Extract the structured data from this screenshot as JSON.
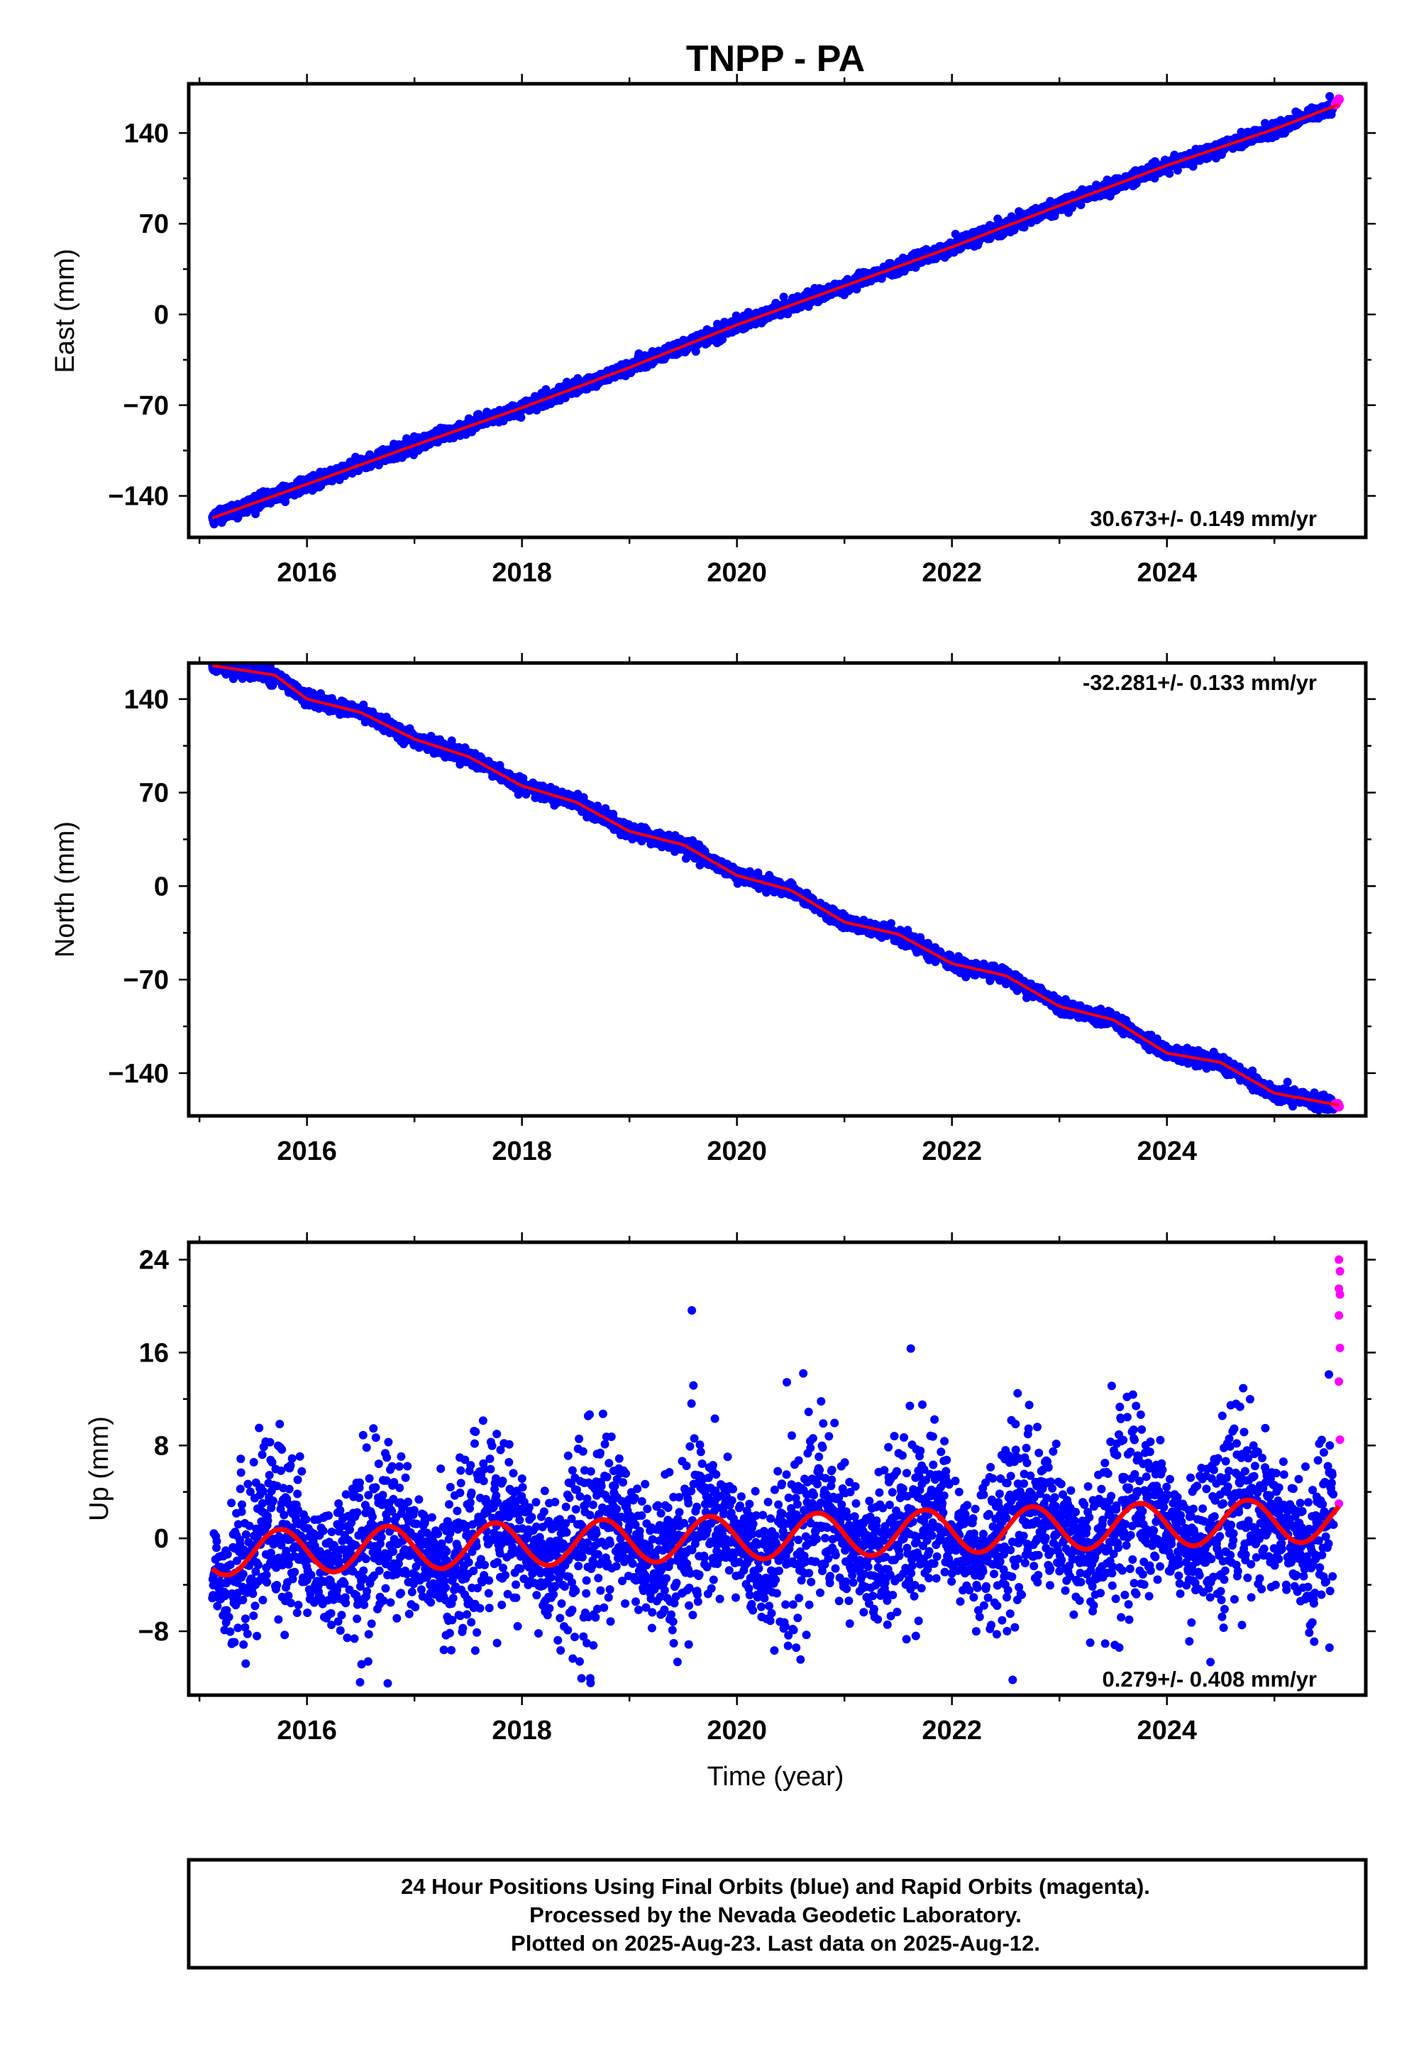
{
  "title": "TNPP - PA",
  "colors": {
    "final": "#0000ff",
    "rapid": "#ff00ff",
    "model": "#ff0000",
    "frame": "#000000"
  },
  "footer": {
    "line1": "24 Hour Positions Using Final Orbits (blue) and Rapid Orbits (magenta).",
    "line2": "Processed by the Nevada Geodetic Laboratory.",
    "line3": "Plotted on 2025-Aug-23. Last data on 2025-Aug-12."
  },
  "chart_data": [
    {
      "type": "scatter",
      "ylabel": "East (mm)",
      "xlabel": "",
      "xlim": [
        2014.9,
        2025.85
      ],
      "ylim": [
        -172,
        178
      ],
      "yticks": [
        -140,
        -70,
        0,
        70,
        140
      ],
      "xticks": [
        2016,
        2018,
        2020,
        2022,
        2024
      ],
      "rate_text": "30.673+/- 0.149 mm/yr",
      "rate_position": "bottom-right",
      "series": [
        {
          "role": "final",
          "x_range": [
            2015.12,
            2025.55
          ],
          "trend": [
            [
              2015.12,
              -157
            ],
            [
              2016.0,
              -131
            ],
            [
              2017.0,
              -101
            ],
            [
              2018.0,
              -72
            ],
            [
              2019.0,
              -41
            ],
            [
              2020.0,
              -8
            ],
            [
              2021.0,
              22
            ],
            [
              2022.0,
              52
            ],
            [
              2023.0,
              84
            ],
            [
              2024.0,
              115
            ],
            [
              2025.0,
              143
            ],
            [
              2025.55,
              160
            ]
          ],
          "noise_mm": 2.5
        },
        {
          "role": "rapid",
          "points": [
            [
              2025.57,
              162
            ],
            [
              2025.58,
              164
            ],
            [
              2025.59,
              165
            ],
            [
              2025.6,
              166
            ]
          ]
        },
        {
          "role": "model",
          "trend": [
            [
              2015.12,
              -157
            ],
            [
              2016.0,
              -131
            ],
            [
              2017.0,
              -101
            ],
            [
              2018.0,
              -72
            ],
            [
              2019.0,
              -41
            ],
            [
              2020.0,
              -8
            ],
            [
              2021.0,
              22
            ],
            [
              2022.0,
              52
            ],
            [
              2023.0,
              84
            ],
            [
              2024.0,
              115
            ],
            [
              2025.0,
              143
            ],
            [
              2025.6,
              162
            ]
          ]
        }
      ]
    },
    {
      "type": "scatter",
      "ylabel": "North (mm)",
      "xlabel": "",
      "xlim": [
        2014.9,
        2025.85
      ],
      "ylim": [
        -172,
        167
      ],
      "yticks": [
        -140,
        -70,
        0,
        70,
        140
      ],
      "xticks": [
        2016,
        2018,
        2020,
        2022,
        2024
      ],
      "rate_text": "-32.281+/- 0.133 mm/yr",
      "rate_position": "top-right",
      "series": [
        {
          "role": "final",
          "x_range": [
            2015.12,
            2025.55
          ],
          "trend": [
            [
              2015.12,
              165
            ],
            [
              2015.7,
              158
            ],
            [
              2016.0,
              140
            ],
            [
              2016.5,
              130
            ],
            [
              2017.0,
              110
            ],
            [
              2017.5,
              97
            ],
            [
              2018.0,
              75
            ],
            [
              2018.5,
              63
            ],
            [
              2019.0,
              41
            ],
            [
              2019.5,
              31
            ],
            [
              2020.0,
              8
            ],
            [
              2020.5,
              -3
            ],
            [
              2021.0,
              -27
            ],
            [
              2021.5,
              -36
            ],
            [
              2022.0,
              -58
            ],
            [
              2022.5,
              -67
            ],
            [
              2023.0,
              -90
            ],
            [
              2023.5,
              -100
            ],
            [
              2024.0,
              -125
            ],
            [
              2024.5,
              -132
            ],
            [
              2025.0,
              -155
            ],
            [
              2025.55,
              -163
            ]
          ],
          "noise_mm": 2.5
        },
        {
          "role": "rapid",
          "points": [
            [
              2025.57,
              -163
            ],
            [
              2025.58,
              -164
            ],
            [
              2025.59,
              -163
            ],
            [
              2025.6,
              -165
            ]
          ]
        },
        {
          "role": "model",
          "trend": [
            [
              2015.12,
              165
            ],
            [
              2015.7,
              158
            ],
            [
              2016.0,
              140
            ],
            [
              2016.5,
              130
            ],
            [
              2017.0,
              110
            ],
            [
              2017.5,
              97
            ],
            [
              2018.0,
              75
            ],
            [
              2018.5,
              63
            ],
            [
              2019.0,
              41
            ],
            [
              2019.5,
              31
            ],
            [
              2020.0,
              8
            ],
            [
              2020.5,
              -3
            ],
            [
              2021.0,
              -27
            ],
            [
              2021.5,
              -36
            ],
            [
              2022.0,
              -58
            ],
            [
              2022.5,
              -67
            ],
            [
              2023.0,
              -90
            ],
            [
              2023.5,
              -100
            ],
            [
              2024.0,
              -125
            ],
            [
              2024.5,
              -132
            ],
            [
              2025.0,
              -155
            ],
            [
              2025.6,
              -164
            ]
          ]
        }
      ]
    },
    {
      "type": "scatter",
      "ylabel": "Up (mm)",
      "xlabel": "Time (year)",
      "xlim": [
        2014.9,
        2025.85
      ],
      "ylim": [
        -13.5,
        25.5
      ],
      "yticks": [
        -8,
        0,
        8,
        16,
        24
      ],
      "xticks": [
        2016,
        2018,
        2020,
        2022,
        2024
      ],
      "rate_text": "0.279+/- 0.408 mm/yr",
      "rate_position": "bottom-right",
      "series": [
        {
          "role": "final",
          "x_range": [
            2015.12,
            2025.55
          ],
          "seasonal": {
            "offset_at_start": -1.3,
            "rate_mm_yr": 0.28,
            "amplitude_mm": 1.9,
            "peak_phase_yr": 0.75
          },
          "noise_mm": 3.4,
          "count": 3600
        },
        {
          "role": "rapid",
          "points": [
            [
              2025.6,
              24.0
            ],
            [
              2025.61,
              23.0
            ],
            [
              2025.6,
              21.5
            ],
            [
              2025.61,
              21.0
            ],
            [
              2025.6,
              19.2
            ],
            [
              2025.61,
              16.4
            ],
            [
              2025.6,
              13.5
            ],
            [
              2025.61,
              8.5
            ],
            [
              2025.6,
              3.0
            ]
          ]
        },
        {
          "role": "model",
          "seasonal": {
            "offset_at_start": -1.3,
            "rate_mm_yr": 0.28,
            "amplitude_mm": 1.9,
            "peak_phase_yr": 0.75
          },
          "x_range": [
            2015.12,
            2025.6
          ]
        }
      ]
    }
  ]
}
